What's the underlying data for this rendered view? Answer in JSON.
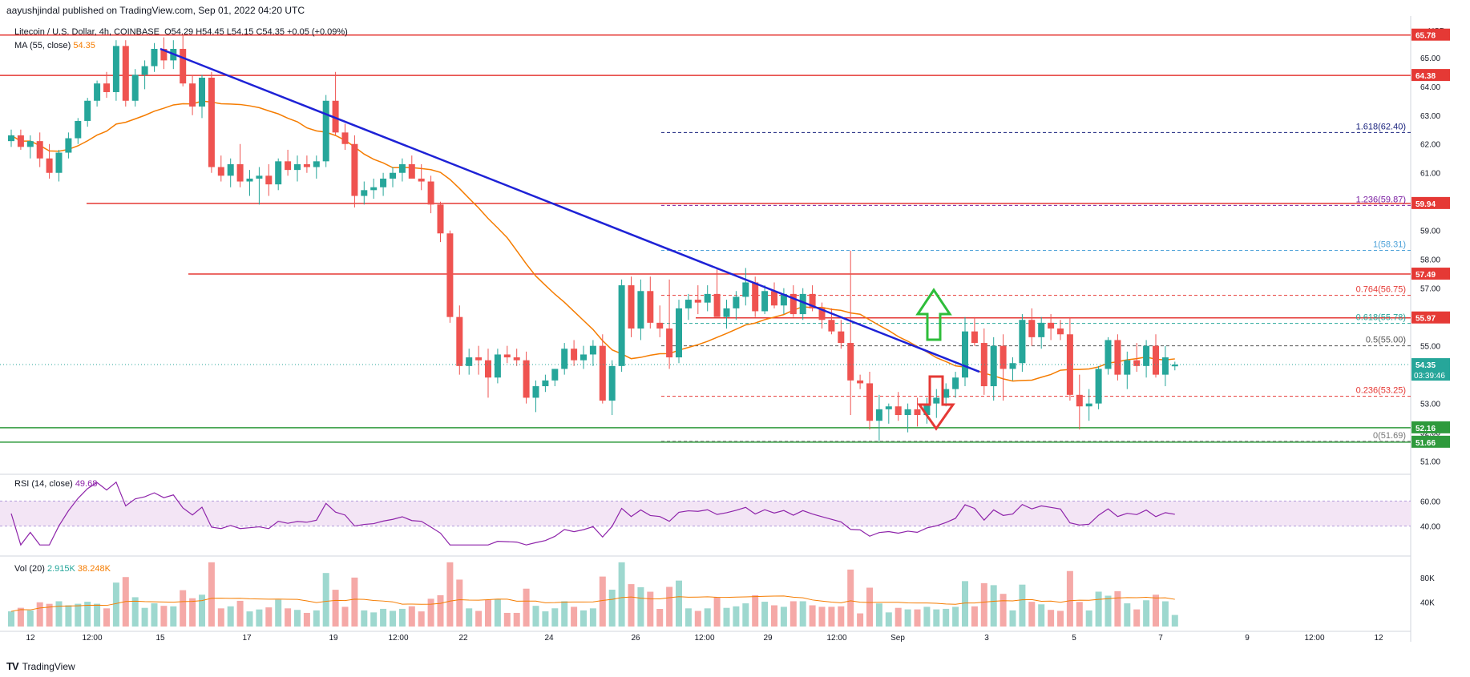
{
  "header": {
    "published": "aayushjindal published on TradingView.com, Sep 01, 2022 04:20 UTC"
  },
  "footer": {
    "brand": "TradingView",
    "logo": "TV"
  },
  "legend": {
    "symbol": "Litecoin / U.S. Dollar, 4h, COINBASE",
    "ohlc": "O54.29  H54.45  L54.15  C54.35  +0.05 (+0.09%)",
    "ma": "MA (55, close)",
    "ma_value": "54.35",
    "rsi": "RSI (14, close)",
    "rsi_value": "49.68",
    "vol": "Vol (20)",
    "vol_value": "2.915K",
    "vol_ma_value": "38.248K"
  },
  "colors": {
    "up": "#26a69a",
    "down": "#ef5350",
    "ma": "#f57c00",
    "trend": "#1e22d6",
    "level": "#e53935",
    "support": "#2e9a3c",
    "rsi": "#8e24aa"
  },
  "chart_data": {
    "type": "candlestick",
    "currency": "USD",
    "x_ticks": [
      "12",
      "12:00",
      "15",
      "17",
      "19",
      "12:00",
      "22",
      "24",
      "26",
      "12:00",
      "29",
      "12:00",
      "Sep",
      "3",
      "5",
      "7",
      "9",
      "12:00",
      "12"
    ],
    "y_ticks": [
      "65.00",
      "64.00",
      "63.00",
      "62.00",
      "61.00",
      "60.00",
      "59.00",
      "58.00",
      "57.00",
      "56.00",
      "55.00",
      "54.00",
      "53.00",
      "52.00",
      "51.00"
    ],
    "ylim": [
      50.6,
      66.3
    ],
    "price_labels": [
      {
        "value": 65.78,
        "text": "65.78",
        "color": "#e53935"
      },
      {
        "value": 64.38,
        "text": "64.38",
        "color": "#e53935"
      },
      {
        "value": 59.94,
        "text": "59.94",
        "color": "#e53935"
      },
      {
        "value": 57.49,
        "text": "57.49",
        "color": "#e53935"
      },
      {
        "value": 55.97,
        "text": "55.97",
        "color": "#e53935"
      },
      {
        "value": 52.16,
        "text": "52.16",
        "color": "#2e9a3c"
      },
      {
        "value": 51.66,
        "text": "51.66",
        "color": "#2e9a3c"
      },
      {
        "value": 54.35,
        "text": "54.35",
        "color": "#26a69a",
        "sub": "03:39:46"
      }
    ],
    "fib_levels": [
      {
        "label": "1.618(62.40)",
        "value": 62.4,
        "color": "#1a237e"
      },
      {
        "label": "1.236(59.87)",
        "value": 59.87,
        "color": "#7b1fa2"
      },
      {
        "label": "1(58.31)",
        "value": 58.31,
        "color": "#4fa3d9"
      },
      {
        "label": "0.764(56.75)",
        "value": 56.75,
        "color": "#e53935"
      },
      {
        "label": "0.618(55.78)",
        "value": 55.78,
        "color": "#26a69a"
      },
      {
        "label": "0.5(55.00)",
        "value": 55.0,
        "color": "#555555"
      },
      {
        "label": "0.236(53.25)",
        "value": 53.25,
        "color": "#e53935"
      },
      {
        "label": "0(51.69)",
        "value": 51.69,
        "color": "#777777"
      }
    ],
    "candles": [
      [
        62.1,
        62.5,
        61.9,
        62.3
      ],
      [
        62.3,
        62.5,
        61.8,
        61.9
      ],
      [
        61.9,
        62.3,
        61.5,
        62.1
      ],
      [
        62.1,
        62.4,
        61.2,
        61.5
      ],
      [
        61.5,
        62.0,
        60.8,
        61.0
      ],
      [
        61.0,
        61.8,
        60.7,
        61.7
      ],
      [
        61.7,
        62.4,
        61.5,
        62.2
      ],
      [
        62.2,
        62.9,
        62.0,
        62.8
      ],
      [
        62.8,
        63.6,
        62.6,
        63.5
      ],
      [
        63.5,
        64.2,
        63.3,
        64.1
      ],
      [
        64.1,
        64.5,
        63.6,
        63.8
      ],
      [
        63.8,
        65.6,
        63.5,
        65.4
      ],
      [
        65.4,
        65.6,
        63.3,
        63.5
      ],
      [
        63.5,
        64.6,
        63.3,
        64.4
      ],
      [
        64.4,
        64.9,
        63.9,
        64.7
      ],
      [
        64.7,
        65.5,
        64.5,
        65.3
      ],
      [
        65.3,
        65.7,
        64.6,
        64.9
      ],
      [
        64.9,
        65.6,
        64.6,
        65.3
      ],
      [
        65.3,
        65.8,
        64.0,
        64.1
      ],
      [
        64.1,
        64.4,
        63.0,
        63.3
      ],
      [
        63.3,
        64.4,
        62.9,
        64.3
      ],
      [
        64.3,
        64.5,
        61.0,
        61.2
      ],
      [
        61.2,
        61.6,
        60.7,
        60.9
      ],
      [
        60.9,
        61.5,
        60.5,
        61.3
      ],
      [
        61.3,
        62.0,
        60.5,
        60.7
      ],
      [
        60.7,
        61.1,
        60.2,
        60.8
      ],
      [
        60.8,
        61.2,
        59.9,
        60.9
      ],
      [
        60.9,
        61.3,
        60.2,
        60.6
      ],
      [
        60.6,
        61.5,
        60.4,
        61.4
      ],
      [
        61.4,
        61.8,
        60.9,
        61.1
      ],
      [
        61.1,
        61.6,
        60.7,
        61.3
      ],
      [
        61.3,
        61.6,
        61.0,
        61.2
      ],
      [
        61.2,
        61.6,
        60.8,
        61.4
      ],
      [
        61.4,
        63.7,
        61.2,
        63.5
      ],
      [
        63.5,
        64.5,
        62.3,
        62.4
      ],
      [
        62.4,
        62.7,
        61.8,
        62.0
      ],
      [
        62.0,
        62.3,
        59.8,
        60.2
      ],
      [
        60.2,
        60.7,
        59.9,
        60.4
      ],
      [
        60.4,
        60.8,
        60.1,
        60.5
      ],
      [
        60.5,
        61.0,
        60.2,
        60.8
      ],
      [
        60.8,
        61.2,
        60.5,
        61.0
      ],
      [
        61.0,
        61.5,
        60.7,
        61.3
      ],
      [
        61.3,
        61.6,
        60.9,
        60.8
      ],
      [
        60.8,
        61.3,
        60.4,
        60.7
      ],
      [
        60.7,
        60.9,
        59.6,
        59.9
      ],
      [
        59.9,
        60.0,
        58.6,
        58.9
      ],
      [
        58.9,
        59.0,
        55.8,
        56.0
      ],
      [
        56.0,
        56.4,
        54.0,
        54.3
      ],
      [
        54.3,
        54.9,
        54.0,
        54.6
      ],
      [
        54.6,
        55.0,
        54.0,
        54.5
      ],
      [
        54.5,
        54.9,
        53.2,
        53.9
      ],
      [
        53.9,
        54.9,
        53.7,
        54.7
      ],
      [
        54.7,
        55.0,
        54.4,
        54.6
      ],
      [
        54.6,
        54.9,
        54.3,
        54.5
      ],
      [
        54.5,
        54.8,
        53.0,
        53.2
      ],
      [
        53.2,
        53.8,
        52.7,
        53.6
      ],
      [
        53.6,
        54.0,
        53.4,
        53.8
      ],
      [
        53.8,
        54.2,
        53.6,
        54.2
      ],
      [
        54.2,
        55.1,
        54.0,
        54.9
      ],
      [
        54.9,
        55.2,
        54.3,
        54.5
      ],
      [
        54.5,
        55.0,
        54.2,
        54.7
      ],
      [
        54.7,
        55.2,
        54.3,
        55.0
      ],
      [
        55.0,
        55.4,
        53.0,
        53.1
      ],
      [
        53.1,
        54.5,
        52.6,
        54.3
      ],
      [
        54.3,
        57.3,
        54.1,
        57.1
      ],
      [
        57.1,
        57.4,
        55.3,
        55.6
      ],
      [
        55.6,
        57.3,
        55.2,
        56.9
      ],
      [
        56.9,
        57.4,
        55.6,
        55.8
      ],
      [
        55.8,
        56.4,
        55.3,
        55.6
      ],
      [
        55.6,
        57.3,
        54.2,
        54.6
      ],
      [
        54.6,
        56.6,
        54.4,
        56.3
      ],
      [
        56.3,
        56.8,
        55.9,
        56.6
      ],
      [
        56.6,
        57.1,
        56.1,
        56.5
      ],
      [
        56.5,
        57.1,
        56.2,
        56.8
      ],
      [
        56.8,
        57.7,
        56.1,
        56.0
      ],
      [
        56.0,
        56.6,
        55.6,
        56.3
      ],
      [
        56.3,
        56.9,
        55.9,
        56.7
      ],
      [
        56.7,
        57.7,
        56.4,
        57.2
      ],
      [
        57.2,
        57.4,
        56.0,
        56.2
      ],
      [
        56.2,
        57.1,
        56.1,
        56.9
      ],
      [
        56.9,
        57.2,
        56.3,
        56.4
      ],
      [
        56.4,
        57.0,
        56.1,
        56.8
      ],
      [
        56.8,
        57.1,
        56.0,
        56.1
      ],
      [
        56.1,
        57.0,
        55.9,
        56.8
      ],
      [
        56.8,
        57.1,
        56.2,
        56.3
      ],
      [
        56.3,
        56.5,
        55.6,
        55.9
      ],
      [
        55.9,
        56.3,
        55.4,
        55.5
      ],
      [
        55.5,
        55.9,
        54.9,
        55.1
      ],
      [
        55.1,
        58.3,
        52.6,
        53.8
      ],
      [
        53.8,
        54.0,
        53.5,
        53.7
      ],
      [
        53.7,
        54.1,
        52.1,
        52.4
      ],
      [
        52.4,
        53.3,
        51.7,
        52.8
      ],
      [
        52.8,
        53.0,
        52.3,
        52.9
      ],
      [
        52.9,
        53.4,
        52.4,
        52.6
      ],
      [
        52.6,
        53.0,
        52.0,
        52.8
      ],
      [
        52.8,
        53.2,
        52.2,
        52.6
      ],
      [
        52.6,
        53.2,
        52.3,
        53.0
      ],
      [
        53.0,
        53.5,
        52.5,
        53.2
      ],
      [
        53.2,
        53.7,
        52.9,
        53.5
      ],
      [
        53.5,
        54.1,
        53.2,
        53.9
      ],
      [
        53.9,
        56.0,
        53.6,
        55.5
      ],
      [
        55.5,
        56.0,
        55.0,
        55.1
      ],
      [
        55.1,
        55.6,
        53.3,
        53.6
      ],
      [
        53.6,
        55.3,
        53.1,
        55.0
      ],
      [
        55.0,
        55.4,
        53.1,
        54.2
      ],
      [
        54.2,
        54.6,
        53.8,
        54.4
      ],
      [
        54.4,
        56.1,
        54.1,
        55.9
      ],
      [
        55.9,
        56.3,
        55.0,
        55.3
      ],
      [
        55.3,
        56.0,
        54.9,
        55.8
      ],
      [
        55.8,
        56.1,
        55.2,
        55.6
      ],
      [
        55.6,
        55.9,
        55.2,
        55.4
      ],
      [
        55.4,
        56.0,
        53.1,
        53.3
      ],
      [
        53.3,
        54.0,
        52.1,
        52.9
      ],
      [
        52.9,
        53.5,
        52.4,
        53.0
      ],
      [
        53.0,
        54.3,
        52.8,
        54.2
      ],
      [
        54.2,
        55.3,
        54.0,
        55.2
      ],
      [
        55.2,
        55.4,
        53.8,
        54.0
      ],
      [
        54.0,
        54.8,
        53.5,
        54.5
      ],
      [
        54.5,
        55.1,
        54.1,
        54.3
      ],
      [
        54.3,
        55.2,
        53.9,
        55.0
      ],
      [
        55.0,
        55.4,
        53.9,
        54.0
      ],
      [
        54.0,
        55.0,
        53.6,
        54.6
      ],
      [
        54.29,
        54.45,
        54.15,
        54.35
      ]
    ],
    "rsi": {
      "label": "RSI (14, close)",
      "band": [
        40,
        60
      ],
      "y_ticks": [
        "60.00",
        "40.00"
      ]
    },
    "volume": {
      "label": "Vol (20)",
      "y_ticks": [
        "80K",
        "40K"
      ]
    }
  }
}
